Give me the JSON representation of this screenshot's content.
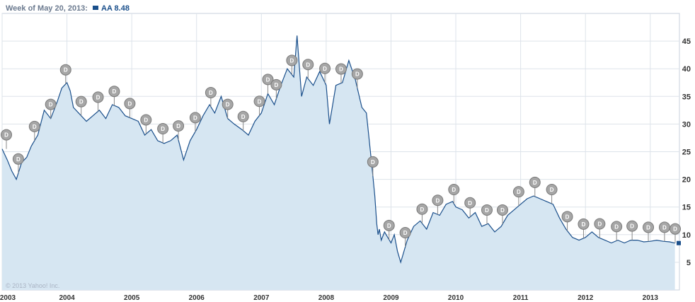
{
  "header": {
    "week_label": "Week of May 20, 2013:",
    "ticker_label": "AA 8.48"
  },
  "copyright": "© 2013 Yahoo! Inc.",
  "colors": {
    "line": "#1a4f8b",
    "area": "#d6e6f2",
    "grid": "#dde3ea",
    "marker": "#a6a6a6"
  },
  "chart_data": {
    "type": "area",
    "series": [
      {
        "name": "AA",
        "x": [
          2003.0,
          2003.08,
          2003.15,
          2003.22,
          2003.3,
          2003.38,
          2003.45,
          2003.55,
          2003.65,
          2003.75,
          2003.85,
          2003.92,
          2004.0,
          2004.05,
          2004.1,
          2004.18,
          2004.3,
          2004.4,
          2004.5,
          2004.6,
          2004.7,
          2004.8,
          2004.9,
          2005.0,
          2005.1,
          2005.2,
          2005.3,
          2005.4,
          2005.5,
          2005.6,
          2005.7,
          2005.8,
          2005.9,
          2006.0,
          2006.1,
          2006.2,
          2006.28,
          2006.38,
          2006.48,
          2006.58,
          2006.7,
          2006.8,
          2006.9,
          2007.0,
          2007.1,
          2007.2,
          2007.3,
          2007.4,
          2007.5,
          2007.55,
          2007.62,
          2007.7,
          2007.8,
          2007.9,
          2008.0,
          2008.05,
          2008.15,
          2008.25,
          2008.35,
          2008.45,
          2008.55,
          2008.62,
          2008.7,
          2008.75,
          2008.78,
          2008.8,
          2008.82,
          2008.85,
          2008.9,
          2009.0,
          2009.05,
          2009.1,
          2009.15,
          2009.25,
          2009.35,
          2009.45,
          2009.55,
          2009.65,
          2009.75,
          2009.85,
          2009.95,
          2010.0,
          2010.1,
          2010.2,
          2010.3,
          2010.4,
          2010.5,
          2010.6,
          2010.7,
          2010.8,
          2010.9,
          2011.0,
          2011.1,
          2011.2,
          2011.3,
          2011.4,
          2011.5,
          2011.6,
          2011.7,
          2011.8,
          2011.9,
          2012.0,
          2012.1,
          2012.2,
          2012.3,
          2012.4,
          2012.5,
          2012.6,
          2012.7,
          2012.8,
          2012.9,
          2013.0,
          2013.1,
          2013.2,
          2013.3,
          2013.38
        ],
        "y": [
          25.5,
          23.5,
          21.5,
          20.0,
          23.0,
          24.0,
          26.0,
          28.0,
          32.5,
          31.0,
          34.0,
          36.5,
          37.5,
          36.0,
          33.0,
          32.0,
          30.5,
          31.5,
          32.5,
          31.0,
          33.5,
          33.0,
          31.5,
          31.0,
          30.5,
          28.0,
          29.0,
          27.0,
          26.5,
          27.0,
          28.0,
          23.5,
          27.0,
          29.0,
          31.5,
          33.5,
          32.0,
          35.0,
          31.0,
          30.0,
          29.0,
          28.0,
          30.5,
          32.0,
          35.5,
          33.5,
          37.0,
          40.0,
          38.5,
          46.0,
          35.0,
          38.5,
          37.0,
          39.5,
          37.0,
          30.0,
          37.0,
          37.5,
          41.5,
          38.0,
          33.0,
          32.0,
          23.0,
          17.0,
          12.0,
          10.0,
          11.0,
          9.0,
          10.5,
          8.5,
          10.0,
          7.0,
          5.0,
          9.0,
          11.5,
          12.5,
          11.0,
          14.0,
          13.5,
          15.5,
          16.0,
          15.0,
          14.5,
          13.0,
          14.0,
          11.5,
          12.0,
          10.5,
          11.5,
          13.5,
          14.5,
          15.5,
          16.5,
          17.0,
          16.5,
          16.0,
          15.5,
          13.0,
          11.0,
          9.5,
          9.0,
          9.5,
          10.5,
          9.5,
          9.0,
          8.5,
          9.0,
          8.5,
          9.0,
          9.0,
          8.7,
          8.8,
          9.0,
          8.8,
          8.7,
          8.48
        ]
      }
    ],
    "dividends": [
      2003.0,
      2003.25,
      2003.5,
      2003.75,
      2003.98,
      2004.22,
      2004.48,
      2004.73,
      2004.97,
      2005.22,
      2005.48,
      2005.72,
      2005.98,
      2006.22,
      2006.48,
      2006.72,
      2006.97,
      2007.1,
      2007.23,
      2007.47,
      2007.72,
      2007.98,
      2008.23,
      2008.48,
      2008.72,
      2008.97,
      2009.22,
      2009.48,
      2009.72,
      2009.97,
      2010.22,
      2010.48,
      2010.72,
      2010.97,
      2011.22,
      2011.48,
      2011.72,
      2011.97,
      2012.22,
      2012.48,
      2012.72,
      2012.97,
      2013.22,
      2013.4
    ],
    "dividend_label": "D",
    "ylim": [
      0,
      50
    ],
    "yticks": [
      5,
      10,
      15,
      20,
      25,
      30,
      35,
      40,
      45
    ],
    "xlim": [
      2003.0,
      2013.45
    ],
    "xticks": [
      2003,
      2004,
      2005,
      2006,
      2007,
      2008,
      2009,
      2010,
      2011,
      2012,
      2013
    ],
    "xtick_labels": [
      "2003",
      "2004",
      "2005",
      "2006",
      "2007",
      "2008",
      "2009",
      "2010",
      "2011",
      "2012",
      "2013"
    ],
    "last_value": 8.48,
    "grid": true,
    "legend": "top-left"
  }
}
